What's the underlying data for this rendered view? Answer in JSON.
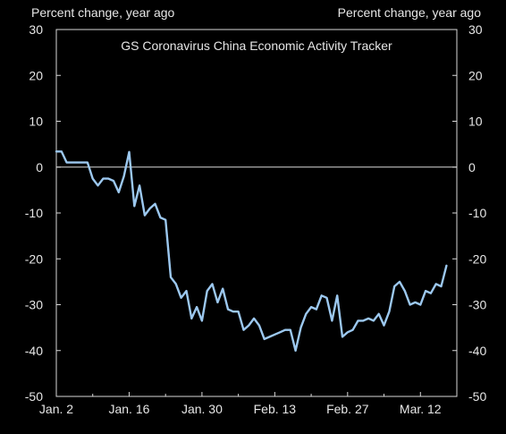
{
  "chart_data": {
    "type": "line",
    "title": "GS Coronavirus China Economic Activity Tracker",
    "ylabel_left": "Percent change, year ago",
    "ylabel_right": "Percent change, year ago",
    "ylim": [
      -50,
      30
    ],
    "yticks": [
      30,
      20,
      10,
      0,
      -10,
      -20,
      -30,
      -40,
      -50
    ],
    "xlim": [
      "2020-01-02",
      "2020-03-19"
    ],
    "xticks": [
      {
        "date": "2020-01-02",
        "label": "Jan. 2"
      },
      {
        "date": "2020-01-16",
        "label": "Jan. 16"
      },
      {
        "date": "2020-01-30",
        "label": "Jan. 30"
      },
      {
        "date": "2020-02-13",
        "label": "Feb. 13"
      },
      {
        "date": "2020-02-27",
        "label": "Feb. 27"
      },
      {
        "date": "2020-03-12",
        "label": "Mar. 12"
      }
    ],
    "grid": false,
    "line_color": "#9cc8ef",
    "series": [
      {
        "x": [
          "2020-01-02",
          "2020-01-03",
          "2020-01-04",
          "2020-01-05",
          "2020-01-06",
          "2020-01-07",
          "2020-01-08",
          "2020-01-09",
          "2020-01-10",
          "2020-01-11",
          "2020-01-12",
          "2020-01-13",
          "2020-01-14",
          "2020-01-15",
          "2020-01-16",
          "2020-01-17",
          "2020-01-18",
          "2020-01-19",
          "2020-01-20",
          "2020-01-21",
          "2020-01-22",
          "2020-01-23",
          "2020-01-24",
          "2020-01-25",
          "2020-01-26",
          "2020-01-27",
          "2020-01-28",
          "2020-01-29",
          "2020-01-30",
          "2020-01-31",
          "2020-02-01",
          "2020-02-02",
          "2020-02-03",
          "2020-02-04",
          "2020-02-05",
          "2020-02-06",
          "2020-02-07",
          "2020-02-08",
          "2020-02-09",
          "2020-02-10",
          "2020-02-11",
          "2020-02-12",
          "2020-02-13",
          "2020-02-14",
          "2020-02-15",
          "2020-02-16",
          "2020-02-17",
          "2020-02-18",
          "2020-02-19",
          "2020-02-20",
          "2020-02-21",
          "2020-02-22",
          "2020-02-23",
          "2020-02-24",
          "2020-02-25",
          "2020-02-26",
          "2020-02-27",
          "2020-02-28",
          "2020-02-29",
          "2020-03-01",
          "2020-03-02",
          "2020-03-03",
          "2020-03-04",
          "2020-03-05",
          "2020-03-06",
          "2020-03-07",
          "2020-03-08",
          "2020-03-09",
          "2020-03-10",
          "2020-03-11",
          "2020-03-12",
          "2020-03-13",
          "2020-03-14",
          "2020-03-15",
          "2020-03-16",
          "2020-03-17"
        ],
        "values": [
          3.4,
          3.4,
          1.0,
          1.0,
          1.0,
          1.0,
          1.0,
          -2.5,
          -4.0,
          -2.5,
          -2.5,
          -3.0,
          -5.5,
          -2.0,
          3.3,
          -8.5,
          -4.0,
          -10.5,
          -9.0,
          -8.0,
          -11.0,
          -11.5,
          -24.0,
          -25.5,
          -28.5,
          -27.0,
          -33.0,
          -30.5,
          -33.5,
          -27.0,
          -25.5,
          -29.5,
          -26.5,
          -31.0,
          -31.5,
          -31.5,
          -35.5,
          -34.5,
          -33.0,
          -34.5,
          -37.5,
          -37.0,
          -36.5,
          -36.0,
          -35.5,
          -35.5,
          -40.0,
          -35.0,
          -32.0,
          -30.5,
          -31.0,
          -28.0,
          -28.5,
          -33.5,
          -28.0,
          -37.0,
          -36.0,
          -35.5,
          -33.5,
          -33.5,
          -33.0,
          -33.5,
          -32.0,
          -34.5,
          -31.5,
          -26.0,
          -25.0,
          -27.0,
          -30.0,
          -29.5,
          -30.0,
          -27.0,
          -27.5,
          -25.5,
          -26.0,
          -21.5
        ]
      }
    ]
  }
}
